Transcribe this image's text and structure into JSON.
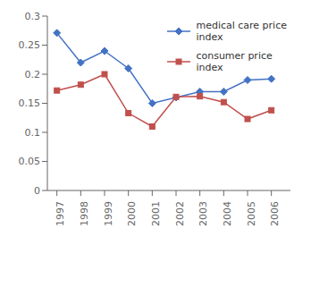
{
  "chart_data": {
    "type": "line",
    "x": [
      1997,
      1998,
      1999,
      2000,
      2001,
      2002,
      2003,
      2004,
      2005,
      2006
    ],
    "series": [
      {
        "name": "medical care price\nindex",
        "color": "#4472c4",
        "marker": "diamond",
        "values": [
          0.271,
          0.22,
          0.24,
          0.21,
          0.15,
          0.16,
          0.17,
          0.17,
          0.19,
          0.192
        ]
      },
      {
        "name": "consumer price\nindex",
        "color": "#c0504d",
        "marker": "square",
        "values": [
          0.172,
          0.182,
          0.2,
          0.133,
          0.11,
          0.161,
          0.162,
          0.152,
          0.123,
          0.138
        ]
      }
    ],
    "xlim": [
      1996.6,
      2006.8
    ],
    "xticks": [
      1997,
      1998,
      1999,
      2000,
      2001,
      2002,
      2003,
      2004,
      2005,
      2006
    ],
    "ylim": [
      0,
      0.3
    ],
    "yticks": [
      0,
      0.05,
      0.1,
      0.15,
      0.2,
      0.25,
      0.3
    ],
    "grid": false,
    "legend": "upper right"
  }
}
